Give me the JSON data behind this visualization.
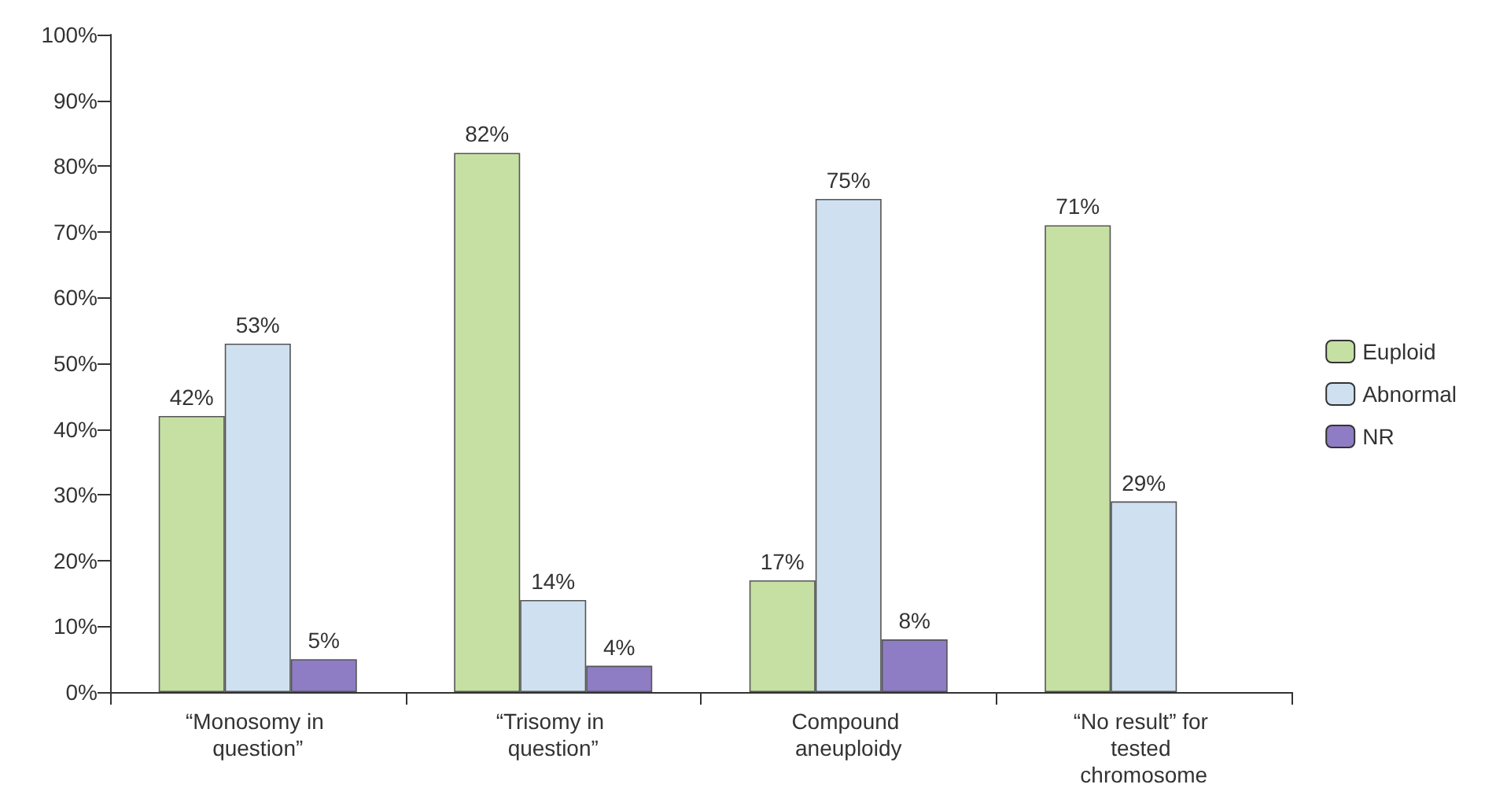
{
  "chart_data": {
    "type": "bar",
    "categories": [
      "“Monosomy in question”",
      "“Trisomy in question”",
      "Compound aneuploidy",
      "“No result” for tested chromosome"
    ],
    "series": [
      {
        "name": "Euploid",
        "color": "#c6e0a4",
        "values": [
          42,
          82,
          17,
          71
        ],
        "value_labels": [
          "42%",
          "82%",
          "17%",
          "71%"
        ]
      },
      {
        "name": "Abnormal",
        "color": "#cfe1f0",
        "values": [
          53,
          14,
          75,
          29
        ],
        "value_labels": [
          "53%",
          "14%",
          "75%",
          "29%"
        ]
      },
      {
        "name": "NR",
        "color": "#8e7cc4",
        "values": [
          5,
          4,
          8,
          null
        ],
        "value_labels": [
          "5%",
          "4%",
          "8%",
          null
        ]
      }
    ],
    "ylim": [
      0,
      100
    ],
    "yticks": [
      {
        "value": 0,
        "label": "0%"
      },
      {
        "value": 10,
        "label": "10%"
      },
      {
        "value": 20,
        "label": "20%"
      },
      {
        "value": 30,
        "label": "30%"
      },
      {
        "value": 40,
        "label": "40%"
      },
      {
        "value": 50,
        "label": "50%"
      },
      {
        "value": 60,
        "label": "60%"
      },
      {
        "value": 70,
        "label": "70%"
      },
      {
        "value": 80,
        "label": "80%"
      },
      {
        "value": 90,
        "label": "90%"
      },
      {
        "value": 100,
        "label": "100%"
      }
    ],
    "grid": false,
    "legend": "right"
  }
}
